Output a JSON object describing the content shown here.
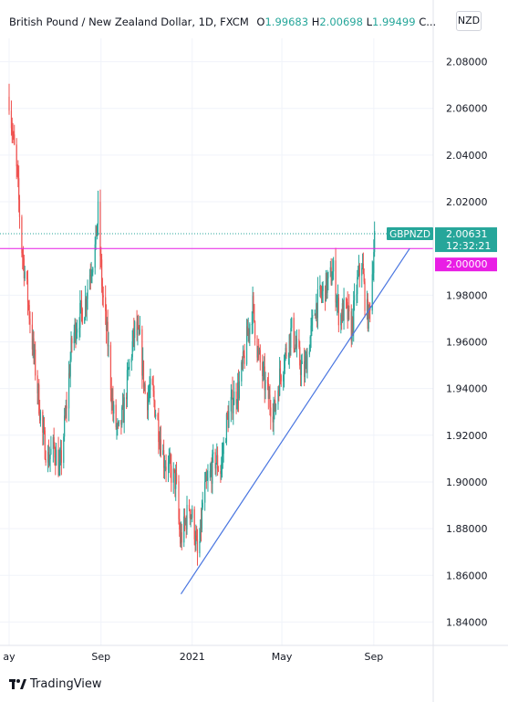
{
  "header": {
    "title": "British Pound / New Zealand Dollar, 1D, FXCM",
    "open_key": "O",
    "open_val": "1.99683",
    "high_key": "H",
    "high_val": "2.00698",
    "low_key": "L",
    "low_val": "1.99499",
    "close_key": "C..."
  },
  "currency_button": "NZD",
  "price_tag": {
    "symbol": "GBPNZD",
    "price": "2.00631",
    "countdown": "12:32:21"
  },
  "level_tag": {
    "price": "2.00000"
  },
  "logo": {
    "text": "TradingView"
  },
  "colors": {
    "up": "#26a69a",
    "down": "#ef5350",
    "level": "#e91ee5",
    "trend": "#4a76e0",
    "tag_bg": "#26a69a"
  },
  "chart_data": {
    "type": "candlestick",
    "ylim": [
      1.83,
      2.09
    ],
    "y_ticks": [
      2.08,
      2.06,
      2.04,
      2.02,
      2.0,
      1.98,
      1.96,
      1.94,
      1.92,
      1.9,
      1.88,
      1.86,
      1.84
    ],
    "y_tick_labels": [
      "2.08000",
      "2.06000",
      "2.04000",
      "2.02000",
      "2.00000",
      "1.98000",
      "1.96000",
      "1.94000",
      "1.92000",
      "1.90000",
      "1.88000",
      "1.86000",
      "1.84000"
    ],
    "x_ticks": [
      {
        "date": "2020-05-01",
        "label": "ay"
      },
      {
        "date": "2020-09-01",
        "label": "Sep"
      },
      {
        "date": "2021-01-01",
        "label": "2021"
      },
      {
        "date": "2021-05-01",
        "label": "May"
      },
      {
        "date": "2021-09-01",
        "label": "Sep"
      }
    ],
    "date_range": [
      "2020-05-01",
      "2021-10-20"
    ],
    "horizontal_level": 2.0,
    "last_price": 2.00631,
    "trendline": [
      [
        "2020-12-17",
        1.852
      ],
      [
        "2021-10-19",
        2.0
      ]
    ],
    "anchors": [
      [
        "2020-05-01",
        2.065
      ],
      [
        "2020-05-07",
        2.045
      ],
      [
        "2020-05-12",
        2.03
      ],
      [
        "2020-05-18",
        2.0
      ],
      [
        "2020-05-24",
        1.985
      ],
      [
        "2020-06-01",
        1.96
      ],
      [
        "2020-06-08",
        1.94
      ],
      [
        "2020-06-15",
        1.92
      ],
      [
        "2020-06-22",
        1.91
      ],
      [
        "2020-06-30",
        1.915
      ],
      [
        "2020-07-08",
        1.905
      ],
      [
        "2020-07-16",
        1.93
      ],
      [
        "2020-07-24",
        1.96
      ],
      [
        "2020-08-01",
        1.97
      ],
      [
        "2020-08-10",
        1.975
      ],
      [
        "2020-08-17",
        1.99
      ],
      [
        "2020-08-24",
        2.0
      ],
      [
        "2020-08-28",
        2.015
      ],
      [
        "2020-09-03",
        1.98
      ],
      [
        "2020-09-10",
        1.96
      ],
      [
        "2020-09-17",
        1.93
      ],
      [
        "2020-09-24",
        1.92
      ],
      [
        "2020-10-01",
        1.93
      ],
      [
        "2020-10-09",
        1.95
      ],
      [
        "2020-10-16",
        1.965
      ],
      [
        "2020-10-23",
        1.96
      ],
      [
        "2020-10-31",
        1.935
      ],
      [
        "2020-11-08",
        1.94
      ],
      [
        "2020-11-16",
        1.925
      ],
      [
        "2020-11-24",
        1.91
      ],
      [
        "2020-12-02",
        1.905
      ],
      [
        "2020-12-10",
        1.9
      ],
      [
        "2020-12-16",
        1.875
      ],
      [
        "2020-12-21",
        1.88
      ],
      [
        "2020-12-28",
        1.89
      ],
      [
        "2021-01-04",
        1.88
      ],
      [
        "2021-01-09",
        1.865
      ],
      [
        "2021-01-16",
        1.895
      ],
      [
        "2021-01-23",
        1.9
      ],
      [
        "2021-01-31",
        1.91
      ],
      [
        "2021-02-08",
        1.905
      ],
      [
        "2021-02-16",
        1.925
      ],
      [
        "2021-02-24",
        1.935
      ],
      [
        "2021-03-04",
        1.94
      ],
      [
        "2021-03-10",
        1.95
      ],
      [
        "2021-03-17",
        1.965
      ],
      [
        "2021-03-23",
        1.975
      ],
      [
        "2021-03-30",
        1.955
      ],
      [
        "2021-04-06",
        1.945
      ],
      [
        "2021-04-14",
        1.935
      ],
      [
        "2021-04-21",
        1.93
      ],
      [
        "2021-04-28",
        1.945
      ],
      [
        "2021-05-06",
        1.955
      ],
      [
        "2021-05-14",
        1.965
      ],
      [
        "2021-05-22",
        1.955
      ],
      [
        "2021-05-30",
        1.945
      ],
      [
        "2021-06-07",
        1.96
      ],
      [
        "2021-06-15",
        1.975
      ],
      [
        "2021-06-23",
        1.98
      ],
      [
        "2021-07-01",
        1.985
      ],
      [
        "2021-07-09",
        1.99
      ],
      [
        "2021-07-17",
        1.97
      ],
      [
        "2021-07-25",
        1.975
      ],
      [
        "2021-08-02",
        1.965
      ],
      [
        "2021-08-10",
        1.985
      ],
      [
        "2021-08-16",
        1.995
      ],
      [
        "2021-08-21",
        1.975
      ],
      [
        "2021-08-25",
        1.97
      ],
      [
        "2021-08-29",
        1.985
      ],
      [
        "2021-09-02",
        2.005
      ]
    ]
  }
}
